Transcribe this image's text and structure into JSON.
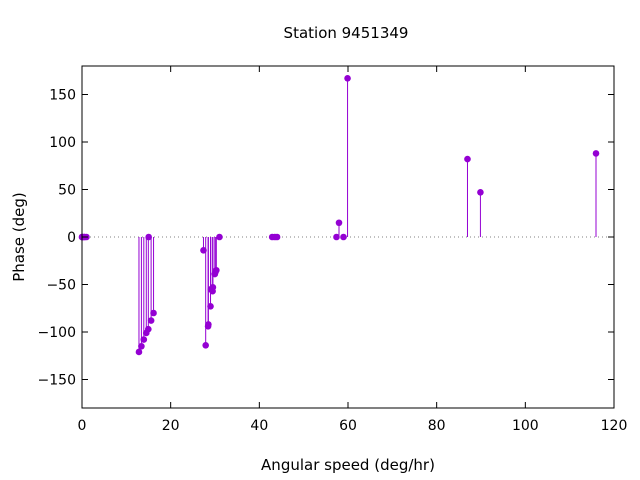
{
  "chart_data": {
    "type": "scatter",
    "style": "impulses",
    "title": "Station 9451349",
    "xlabel": "Angular speed (deg/hr)",
    "ylabel": "Phase (deg)",
    "xlim": [
      0,
      120
    ],
    "ylim": [
      -180,
      180
    ],
    "xticks": [
      0,
      20,
      40,
      60,
      80,
      100,
      120
    ],
    "yticks": [
      -150,
      -100,
      -50,
      0,
      50,
      100,
      150
    ],
    "zero_line": true,
    "grid": false,
    "color": "#9400d3",
    "points": [
      {
        "x": 0.0,
        "y": 0
      },
      {
        "x": 0.04,
        "y": 0
      },
      {
        "x": 0.08,
        "y": 0
      },
      {
        "x": 0.5,
        "y": 0
      },
      {
        "x": 0.55,
        "y": 0
      },
      {
        "x": 1.0,
        "y": 0
      },
      {
        "x": 12.85,
        "y": -121
      },
      {
        "x": 13.4,
        "y": -115
      },
      {
        "x": 13.94,
        "y": -108
      },
      {
        "x": 14.5,
        "y": -101
      },
      {
        "x": 14.96,
        "y": -97
      },
      {
        "x": 15.04,
        "y": 0
      },
      {
        "x": 15.59,
        "y": -88
      },
      {
        "x": 16.14,
        "y": -80
      },
      {
        "x": 27.4,
        "y": -14
      },
      {
        "x": 27.9,
        "y": -114
      },
      {
        "x": 28.44,
        "y": -94
      },
      {
        "x": 28.51,
        "y": -92
      },
      {
        "x": 28.99,
        "y": -73
      },
      {
        "x": 29.05,
        "y": -55
      },
      {
        "x": 29.46,
        "y": -57
      },
      {
        "x": 29.53,
        "y": -53
      },
      {
        "x": 29.96,
        "y": -39
      },
      {
        "x": 30.08,
        "y": -37
      },
      {
        "x": 30.3,
        "y": -35
      },
      {
        "x": 31.0,
        "y": 0
      },
      {
        "x": 42.9,
        "y": 0
      },
      {
        "x": 43.5,
        "y": 0
      },
      {
        "x": 44.0,
        "y": 0
      },
      {
        "x": 57.4,
        "y": 0
      },
      {
        "x": 57.97,
        "y": 15
      },
      {
        "x": 58.98,
        "y": 0
      },
      {
        "x": 59.9,
        "y": 167
      },
      {
        "x": 86.95,
        "y": 82
      },
      {
        "x": 89.87,
        "y": 47
      },
      {
        "x": 115.94,
        "y": 88
      }
    ]
  }
}
